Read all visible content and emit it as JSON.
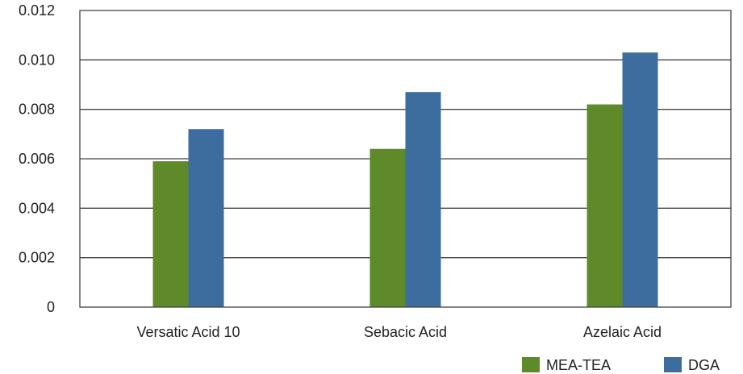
{
  "chart_data": {
    "type": "bar",
    "categories": [
      "Versatic Acid 10",
      "Sebacic Acid",
      "Azelaic Acid"
    ],
    "series": [
      {
        "name": "MEA-TEA",
        "color": "#5e8a2a",
        "values": [
          0.0059,
          0.0064,
          0.0082
        ]
      },
      {
        "name": "DGA",
        "color": "#3d6d9f",
        "values": [
          0.0072,
          0.0087,
          0.0103
        ]
      }
    ],
    "yticks": [
      "0",
      "0.002",
      "0.004",
      "0.006",
      "0.008",
      "0.010",
      "0.012"
    ],
    "ylim": [
      0,
      0.012
    ],
    "grid": true,
    "legend": "bottom-right",
    "title": "",
    "xlabel": "",
    "ylabel": ""
  }
}
